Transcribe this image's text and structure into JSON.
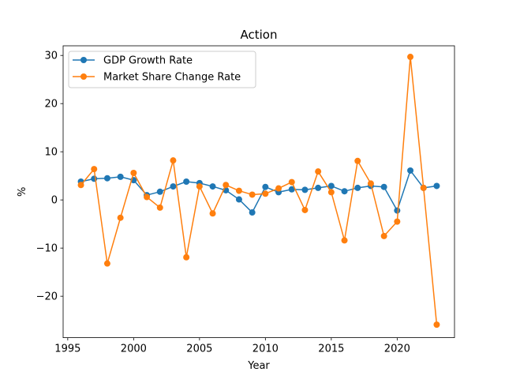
{
  "chart_data": {
    "type": "line",
    "title": "Action",
    "xlabel": "Year",
    "ylabel": "%",
    "xlim": [
      1994.65,
      2024.35
    ],
    "ylim": [
      -28.6,
      32.0
    ],
    "x_ticks": [
      1995,
      2000,
      2005,
      2010,
      2015,
      2020
    ],
    "y_ticks": [
      -20,
      -10,
      0,
      10,
      20,
      30
    ],
    "y_tick_labels": [
      "−20",
      "−10",
      "0",
      "10",
      "20",
      "30"
    ],
    "grid": false,
    "legend_position": "upper-left",
    "x": [
      1996,
      1997,
      1998,
      1999,
      2000,
      2001,
      2002,
      2003,
      2004,
      2005,
      2006,
      2007,
      2008,
      2009,
      2010,
      2011,
      2012,
      2013,
      2014,
      2015,
      2016,
      2017,
      2018,
      2019,
      2020,
      2021,
      2022,
      2023
    ],
    "series": [
      {
        "name": "GDP Growth Rate",
        "color": "#1f77b4",
        "values": [
          3.8,
          4.4,
          4.5,
          4.8,
          4.1,
          1.0,
          1.7,
          2.8,
          3.8,
          3.5,
          2.8,
          2.0,
          0.1,
          -2.6,
          2.7,
          1.6,
          2.2,
          2.1,
          2.5,
          2.9,
          1.8,
          2.5,
          2.9,
          2.7,
          -2.2,
          6.1,
          2.5,
          2.9
        ]
      },
      {
        "name": "Market Share Change Rate",
        "color": "#ff7f0e",
        "values": [
          3.1,
          6.4,
          -13.2,
          -3.7,
          5.6,
          0.6,
          -1.6,
          8.2,
          -11.9,
          2.8,
          -2.8,
          3.1,
          1.9,
          1.1,
          1.3,
          2.4,
          3.7,
          -2.1,
          5.9,
          1.6,
          -8.4,
          8.1,
          3.4,
          -7.5,
          -4.5,
          29.7,
          2.5,
          -25.9
        ]
      }
    ]
  }
}
